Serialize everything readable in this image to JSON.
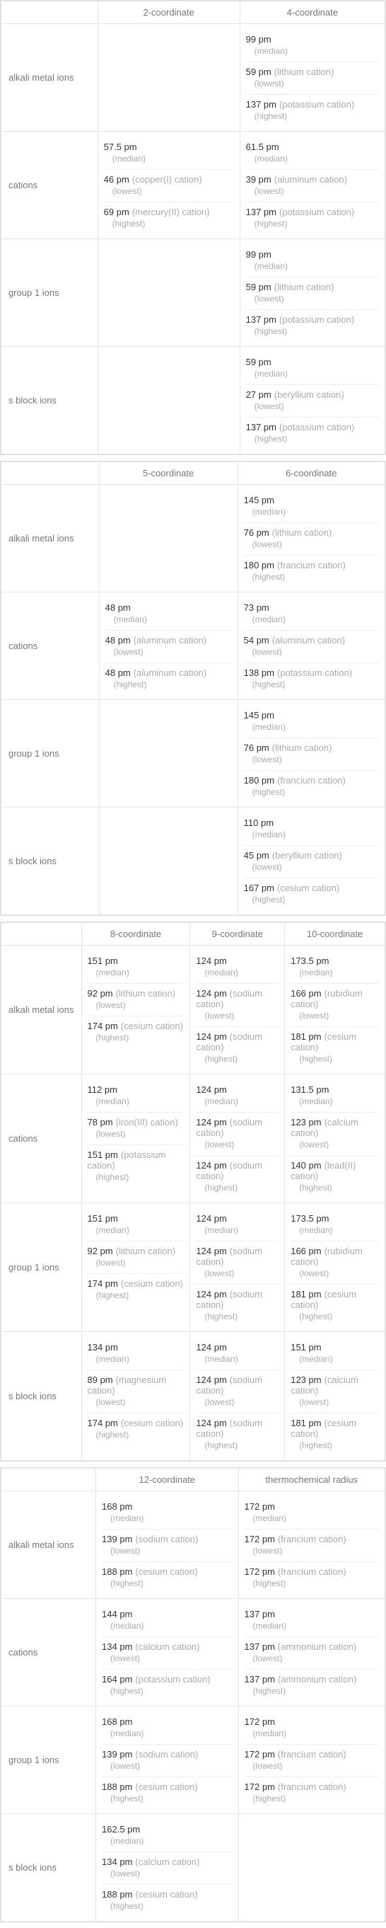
{
  "sections": [
    {
      "columns": [
        "2-coordinate",
        "4-coordinate"
      ],
      "rows": [
        {
          "label": "alkali metal ions",
          "cells": [
            null,
            [
              {
                "val": "99 pm",
                "qual": "(median)"
              },
              {
                "val": "59 pm",
                "desc": "(lithium cation)",
                "qual": "(lowest)"
              },
              {
                "val": "137 pm",
                "desc": "(potassium cation)",
                "qual": "(highest)"
              }
            ]
          ]
        },
        {
          "label": "cations",
          "cells": [
            [
              {
                "val": "57.5 pm",
                "qual": "(median)"
              },
              {
                "val": "46 pm",
                "desc": "(copper(I) cation)",
                "qual": "(lowest)"
              },
              {
                "val": "69 pm",
                "desc": "(mercury(II) cation)",
                "qual": "(highest)"
              }
            ],
            [
              {
                "val": "61.5 pm",
                "qual": "(median)"
              },
              {
                "val": "39 pm",
                "desc": "(aluminum cation)",
                "qual": "(lowest)"
              },
              {
                "val": "137 pm",
                "desc": "(potassium cation)",
                "qual": "(highest)"
              }
            ]
          ]
        },
        {
          "label": "group 1 ions",
          "cells": [
            null,
            [
              {
                "val": "99 pm",
                "qual": "(median)"
              },
              {
                "val": "59 pm",
                "desc": "(lithium cation)",
                "qual": "(lowest)"
              },
              {
                "val": "137 pm",
                "desc": "(potassium cation)",
                "qual": "(highest)"
              }
            ]
          ]
        },
        {
          "label": "s block ions",
          "cells": [
            null,
            [
              {
                "val": "59 pm",
                "qual": "(median)"
              },
              {
                "val": "27 pm",
                "desc": "(beryllium cation)",
                "qual": "(lowest)"
              },
              {
                "val": "137 pm",
                "desc": "(potassium cation)",
                "qual": "(highest)"
              }
            ]
          ]
        }
      ]
    },
    {
      "columns": [
        "5-coordinate",
        "6-coordinate"
      ],
      "rows": [
        {
          "label": "alkali metal ions",
          "cells": [
            null,
            [
              {
                "val": "145 pm",
                "qual": "(median)"
              },
              {
                "val": "76 pm",
                "desc": "(lithium cation)",
                "qual": "(lowest)"
              },
              {
                "val": "180 pm",
                "desc": "(francium cation)",
                "qual": "(highest)"
              }
            ]
          ]
        },
        {
          "label": "cations",
          "cells": [
            [
              {
                "val": "48 pm",
                "qual": "(median)"
              },
              {
                "val": "48 pm",
                "desc": "(aluminum cation)",
                "qual": "(lowest)"
              },
              {
                "val": "48 pm",
                "desc": "(aluminum cation)",
                "qual": "(highest)"
              }
            ],
            [
              {
                "val": "73 pm",
                "qual": "(median)"
              },
              {
                "val": "54 pm",
                "desc": "(aluminum cation)",
                "qual": "(lowest)"
              },
              {
                "val": "138 pm",
                "desc": "(potassium cation)",
                "qual": "(highest)"
              }
            ]
          ]
        },
        {
          "label": "group 1 ions",
          "cells": [
            null,
            [
              {
                "val": "145 pm",
                "qual": "(median)"
              },
              {
                "val": "76 pm",
                "desc": "(lithium cation)",
                "qual": "(lowest)"
              },
              {
                "val": "180 pm",
                "desc": "(francium cation)",
                "qual": "(highest)"
              }
            ]
          ]
        },
        {
          "label": "s block ions",
          "cells": [
            null,
            [
              {
                "val": "110 pm",
                "qual": "(median)"
              },
              {
                "val": "45 pm",
                "desc": "(beryllium cation)",
                "qual": "(lowest)"
              },
              {
                "val": "167 pm",
                "desc": "(cesium cation)",
                "qual": "(highest)"
              }
            ]
          ]
        }
      ]
    },
    {
      "columns": [
        "8-coordinate",
        "9-coordinate",
        "10-coordinate"
      ],
      "rows": [
        {
          "label": "alkali metal ions",
          "cells": [
            [
              {
                "val": "151 pm",
                "qual": "(median)"
              },
              {
                "val": "92 pm",
                "desc": "(lithium cation)",
                "qual": "(lowest)"
              },
              {
                "val": "174 pm",
                "desc": "(cesium cation)",
                "qual": "(highest)"
              }
            ],
            [
              {
                "val": "124 pm",
                "qual": "(median)"
              },
              {
                "val": "124 pm",
                "desc": "(sodium cation)",
                "qual": "(lowest)"
              },
              {
                "val": "124 pm",
                "desc": "(sodium cation)",
                "qual": "(highest)"
              }
            ],
            [
              {
                "val": "173.5 pm",
                "qual": "(median)"
              },
              {
                "val": "166 pm",
                "desc": "(rubidium cation)",
                "qual": "(lowest)"
              },
              {
                "val": "181 pm",
                "desc": "(cesium cation)",
                "qual": "(highest)"
              }
            ]
          ]
        },
        {
          "label": "cations",
          "cells": [
            [
              {
                "val": "112 pm",
                "qual": "(median)"
              },
              {
                "val": "78 pm",
                "desc": "(iron(III) cation)",
                "qual": "(lowest)"
              },
              {
                "val": "151 pm",
                "desc": "(potassium cation)",
                "qual": "(highest)"
              }
            ],
            [
              {
                "val": "124 pm",
                "qual": "(median)"
              },
              {
                "val": "124 pm",
                "desc": "(sodium cation)",
                "qual": "(lowest)"
              },
              {
                "val": "124 pm",
                "desc": "(sodium cation)",
                "qual": "(highest)"
              }
            ],
            [
              {
                "val": "131.5 pm",
                "qual": "(median)"
              },
              {
                "val": "123 pm",
                "desc": "(calcium cation)",
                "qual": "(lowest)"
              },
              {
                "val": "140 pm",
                "desc": "(lead(II) cation)",
                "qual": "(highest)"
              }
            ]
          ]
        },
        {
          "label": "group 1 ions",
          "cells": [
            [
              {
                "val": "151 pm",
                "qual": "(median)"
              },
              {
                "val": "92 pm",
                "desc": "(lithium cation)",
                "qual": "(lowest)"
              },
              {
                "val": "174 pm",
                "desc": "(cesium cation)",
                "qual": "(highest)"
              }
            ],
            [
              {
                "val": "124 pm",
                "qual": "(median)"
              },
              {
                "val": "124 pm",
                "desc": "(sodium cation)",
                "qual": "(lowest)"
              },
              {
                "val": "124 pm",
                "desc": "(sodium cation)",
                "qual": "(highest)"
              }
            ],
            [
              {
                "val": "173.5 pm",
                "qual": "(median)"
              },
              {
                "val": "166 pm",
                "desc": "(rubidium cation)",
                "qual": "(lowest)"
              },
              {
                "val": "181 pm",
                "desc": "(cesium cation)",
                "qual": "(highest)"
              }
            ]
          ]
        },
        {
          "label": "s block ions",
          "cells": [
            [
              {
                "val": "134 pm",
                "qual": "(median)"
              },
              {
                "val": "89 pm",
                "desc": "(magnesium cation)",
                "qual": "(lowest)"
              },
              {
                "val": "174 pm",
                "desc": "(cesium cation)",
                "qual": "(highest)"
              }
            ],
            [
              {
                "val": "124 pm",
                "qual": "(median)"
              },
              {
                "val": "124 pm",
                "desc": "(sodium cation)",
                "qual": "(lowest)"
              },
              {
                "val": "124 pm",
                "desc": "(sodium cation)",
                "qual": "(highest)"
              }
            ],
            [
              {
                "val": "151 pm",
                "qual": "(median)"
              },
              {
                "val": "123 pm",
                "desc": "(calcium cation)",
                "qual": "(lowest)"
              },
              {
                "val": "181 pm",
                "desc": "(cesium cation)",
                "qual": "(highest)"
              }
            ]
          ]
        }
      ]
    },
    {
      "columns": [
        "12-coordinate",
        "thermochemical radius"
      ],
      "rows": [
        {
          "label": "alkali metal ions",
          "cells": [
            [
              {
                "val": "168 pm",
                "qual": "(median)"
              },
              {
                "val": "139 pm",
                "desc": "(sodium cation)",
                "qual": "(lowest)"
              },
              {
                "val": "188 pm",
                "desc": "(cesium cation)",
                "qual": "(highest)"
              }
            ],
            [
              {
                "val": "172 pm",
                "qual": "(median)"
              },
              {
                "val": "172 pm",
                "desc": "(francium cation)",
                "qual": "(lowest)"
              },
              {
                "val": "172 pm",
                "desc": "(francium cation)",
                "qual": "(highest)"
              }
            ]
          ]
        },
        {
          "label": "cations",
          "cells": [
            [
              {
                "val": "144 pm",
                "qual": "(median)"
              },
              {
                "val": "134 pm",
                "desc": "(calcium cation)",
                "qual": "(lowest)"
              },
              {
                "val": "164 pm",
                "desc": "(potassium cation)",
                "qual": "(highest)"
              }
            ],
            [
              {
                "val": "137 pm",
                "qual": "(median)"
              },
              {
                "val": "137 pm",
                "desc": "(ammonium cation)",
                "qual": "(lowest)"
              },
              {
                "val": "137 pm",
                "desc": "(ammonium cation)",
                "qual": "(highest)"
              }
            ]
          ]
        },
        {
          "label": "group 1 ions",
          "cells": [
            [
              {
                "val": "168 pm",
                "qual": "(median)"
              },
              {
                "val": "139 pm",
                "desc": "(sodium cation)",
                "qual": "(lowest)"
              },
              {
                "val": "188 pm",
                "desc": "(cesium cation)",
                "qual": "(highest)"
              }
            ],
            [
              {
                "val": "172 pm",
                "qual": "(median)"
              },
              {
                "val": "172 pm",
                "desc": "(francium cation)",
                "qual": "(lowest)"
              },
              {
                "val": "172 pm",
                "desc": "(francium cation)",
                "qual": "(highest)"
              }
            ]
          ]
        },
        {
          "label": "s block ions",
          "cells": [
            [
              {
                "val": "162.5 pm",
                "qual": "(median)"
              },
              {
                "val": "134 pm",
                "desc": "(calcium cation)",
                "qual": "(lowest)"
              },
              {
                "val": "188 pm",
                "desc": "(cesium cation)",
                "qual": "(highest)"
              }
            ],
            null
          ]
        }
      ]
    }
  ]
}
